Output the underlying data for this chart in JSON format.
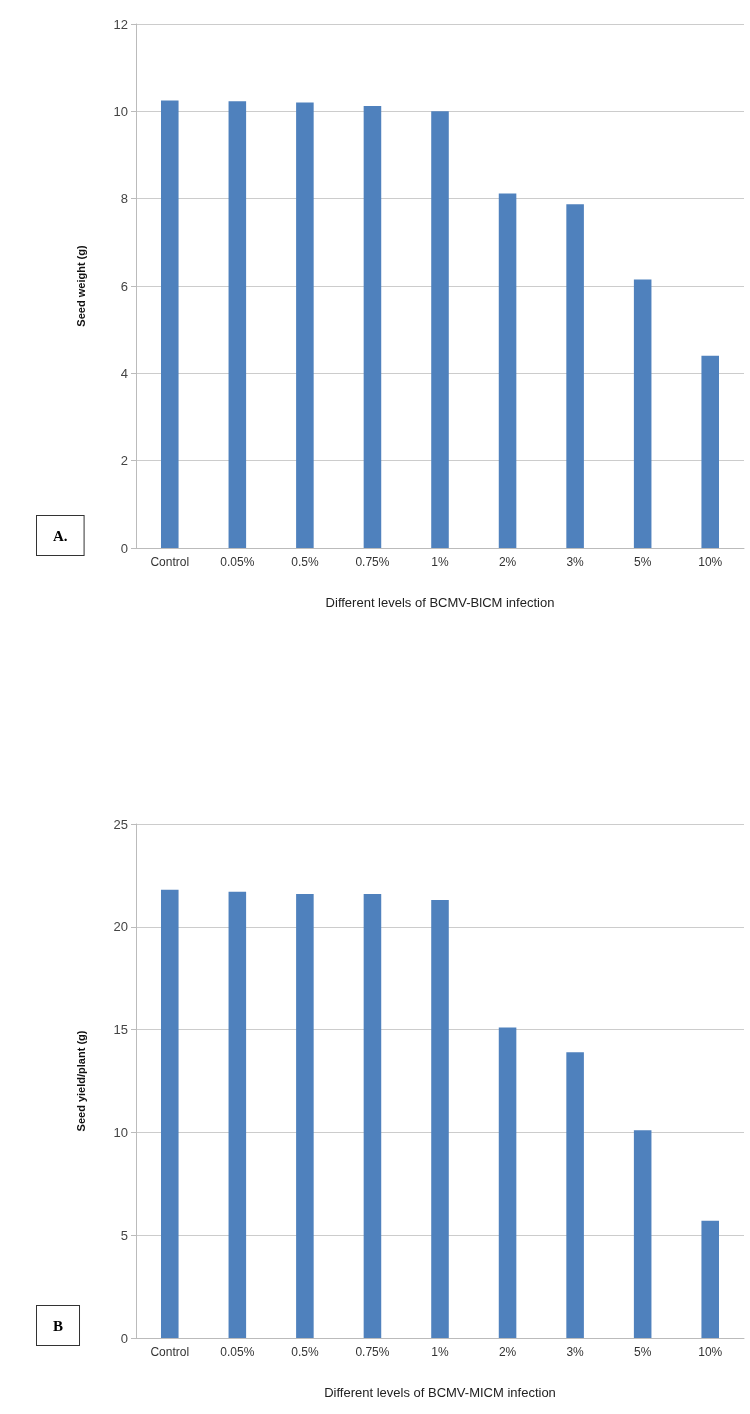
{
  "chart_data": [
    {
      "type": "bar",
      "xlabel": "Different levels of BCMV-BlCM infection",
      "ylabel": "Seed weight (g)",
      "annotations": [
        "A."
      ],
      "categories": [
        "Control",
        "0.05%",
        "0.5%",
        "0.75%",
        "1%",
        "2%",
        "3%",
        "5%",
        "10%"
      ],
      "values": [
        10.25,
        10.23,
        10.2,
        10.12,
        10.0,
        8.12,
        7.87,
        6.15,
        4.4
      ],
      "color": "#4f81bd",
      "ylim": [
        0,
        12
      ],
      "yticks": [
        0,
        2,
        4,
        6,
        8,
        10,
        12
      ],
      "grid": "y"
    },
    {
      "type": "bar",
      "xlabel": "Different levels of BCMV-MICM infection",
      "ylabel": "Seed yield/plant (g)",
      "annotations": [
        "B"
      ],
      "categories": [
        "Control",
        "0.05%",
        "0.5%",
        "0.75%",
        "1%",
        "2%",
        "3%",
        "5%",
        "10%"
      ],
      "values": [
        21.8,
        21.7,
        21.6,
        21.6,
        21.3,
        15.1,
        13.9,
        10.1,
        5.7
      ],
      "color": "#4f81bd",
      "ylim": [
        0,
        25
      ],
      "yticks": [
        0,
        5,
        10,
        15,
        20,
        25
      ],
      "grid": "y"
    }
  ]
}
